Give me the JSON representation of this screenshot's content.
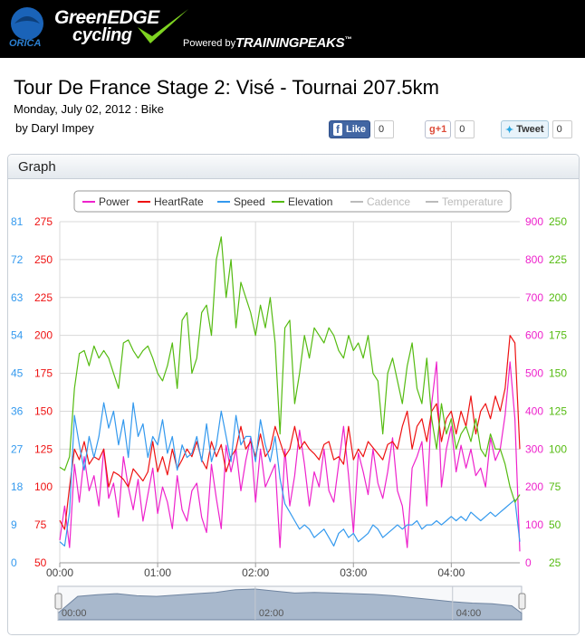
{
  "header": {
    "brand_line1": "GreenEDGE",
    "brand_line2": "cycling",
    "sponsor": "ORICA",
    "powered_by": "Powered by",
    "partner": "TRAININGPEAKS",
    "partner_mark": "™"
  },
  "page": {
    "title": "Tour De France Stage 2: Visé - Tournai 207.5km",
    "date_line": "Monday, July 02, 2012 : Bike",
    "author": "by Daryl Impey"
  },
  "social": {
    "like_label": "Like",
    "like_count": "0",
    "plus_label": "+1",
    "plus_count": "0",
    "tweet_label": "Tweet",
    "tweet_count": "0"
  },
  "panel": {
    "title": "Graph"
  },
  "colors": {
    "power": "#ee22cc",
    "heartrate": "#ee1111",
    "speed": "#3399ee",
    "elevation": "#55bb11",
    "hidden_legend": "#bbbbbb",
    "navigator_fill": "#a8b8cc"
  },
  "chart_data": {
    "type": "line",
    "legend": [
      {
        "name": "Power",
        "visible": true
      },
      {
        "name": "HeartRate",
        "visible": true
      },
      {
        "name": "Speed",
        "visible": true
      },
      {
        "name": "Elevation",
        "visible": true
      },
      {
        "name": "Cadence",
        "visible": false
      },
      {
        "name": "Temperature",
        "visible": false
      }
    ],
    "legend_placement": "top-center",
    "x_ticks": [
      "00:00",
      "01:00",
      "02:00",
      "03:00",
      "04:00"
    ],
    "navigator_ticks": [
      "00:00",
      "02:00",
      "04:00"
    ],
    "xlim_minutes": [
      0,
      282
    ],
    "y_axes": {
      "speed": {
        "ticks": [
          "0",
          "9",
          "18",
          "27",
          "36",
          "45",
          "54",
          "63",
          "72",
          "81"
        ],
        "ylim": [
          0,
          81
        ]
      },
      "heartrate": {
        "ticks": [
          "50",
          "75",
          "100",
          "125",
          "150",
          "175",
          "200",
          "225",
          "250",
          "275"
        ],
        "ylim": [
          50,
          275
        ]
      },
      "power": {
        "ticks": [
          "0",
          "100",
          "200",
          "300",
          "400",
          "500",
          "600",
          "700",
          "800",
          "900"
        ],
        "ylim": [
          0,
          900
        ]
      },
      "elevation": {
        "ticks": [
          "25",
          "50",
          "75",
          "100",
          "125",
          "150",
          "175",
          "200",
          "225",
          "250"
        ],
        "ylim": [
          25,
          250
        ]
      }
    },
    "grid": true,
    "series": [
      {
        "name": "Power",
        "axis": "power",
        "x": [
          0,
          3,
          6,
          9,
          12,
          15,
          18,
          21,
          24,
          27,
          30,
          33,
          36,
          39,
          42,
          45,
          48,
          51,
          54,
          57,
          60,
          63,
          66,
          69,
          72,
          75,
          78,
          81,
          84,
          87,
          90,
          93,
          96,
          99,
          102,
          105,
          108,
          111,
          114,
          117,
          120,
          123,
          126,
          129,
          132,
          135,
          138,
          141,
          144,
          147,
          150,
          153,
          156,
          159,
          162,
          165,
          168,
          171,
          174,
          177,
          180,
          183,
          186,
          189,
          192,
          195,
          198,
          201,
          204,
          207,
          210,
          213,
          216,
          219,
          222,
          225,
          228,
          231,
          234,
          237,
          240,
          243,
          246,
          249,
          252,
          255,
          258,
          261,
          264,
          267,
          270,
          273,
          276,
          279,
          282
        ],
        "y": [
          60,
          150,
          40,
          260,
          160,
          280,
          190,
          230,
          150,
          300,
          170,
          210,
          120,
          280,
          200,
          140,
          220,
          110,
          180,
          250,
          130,
          200,
          160,
          90,
          230,
          140,
          110,
          190,
          210,
          120,
          80,
          260,
          170,
          90,
          310,
          240,
          300,
          190,
          270,
          330,
          160,
          300,
          200,
          230,
          260,
          40,
          300,
          150,
          230,
          350,
          260,
          150,
          240,
          200,
          300,
          190,
          160,
          260,
          360,
          230,
          80,
          290,
          240,
          180,
          300,
          210,
          170,
          240,
          330,
          190,
          150,
          40,
          250,
          280,
          320,
          150,
          420,
          530,
          200,
          300,
          360,
          240,
          310,
          250,
          300,
          230,
          250,
          200,
          330,
          270,
          300,
          390,
          530,
          380,
          30
        ]
      },
      {
        "name": "HeartRate",
        "axis": "heartrate",
        "x": [
          0,
          3,
          6,
          9,
          12,
          15,
          18,
          21,
          24,
          27,
          30,
          33,
          36,
          39,
          42,
          45,
          48,
          51,
          54,
          57,
          60,
          63,
          66,
          69,
          72,
          75,
          78,
          81,
          84,
          87,
          90,
          93,
          96,
          99,
          102,
          105,
          108,
          111,
          114,
          117,
          120,
          123,
          126,
          129,
          132,
          135,
          138,
          141,
          144,
          147,
          150,
          153,
          156,
          159,
          162,
          165,
          168,
          171,
          174,
          177,
          180,
          183,
          186,
          189,
          192,
          195,
          198,
          201,
          204,
          207,
          210,
          213,
          216,
          219,
          222,
          225,
          228,
          231,
          234,
          237,
          240,
          243,
          246,
          249,
          252,
          255,
          258,
          261,
          264,
          267,
          270,
          273,
          276,
          279,
          282
        ],
        "y": [
          78,
          72,
          100,
          125,
          118,
          130,
          115,
          120,
          118,
          125,
          100,
          110,
          108,
          105,
          100,
          112,
          108,
          104,
          110,
          130,
          110,
          120,
          108,
          125,
          112,
          118,
          125,
          120,
          130,
          118,
          112,
          130,
          120,
          128,
          110,
          120,
          125,
          140,
          125,
          130,
          120,
          135,
          120,
          125,
          140,
          130,
          120,
          125,
          140,
          125,
          130,
          125,
          122,
          118,
          128,
          130,
          118,
          120,
          115,
          140,
          118,
          125,
          120,
          130,
          126,
          122,
          118,
          128,
          130,
          125,
          140,
          150,
          125,
          140,
          145,
          130,
          150,
          155,
          130,
          145,
          150,
          135,
          150,
          140,
          160,
          135,
          150,
          155,
          145,
          160,
          150,
          165,
          200,
          195,
          125
        ]
      },
      {
        "name": "Speed",
        "axis": "speed",
        "x": [
          0,
          3,
          6,
          9,
          12,
          15,
          18,
          21,
          24,
          27,
          30,
          33,
          36,
          39,
          42,
          45,
          48,
          51,
          54,
          57,
          60,
          63,
          66,
          69,
          72,
          75,
          78,
          81,
          84,
          87,
          90,
          93,
          96,
          99,
          102,
          105,
          108,
          111,
          114,
          117,
          120,
          123,
          126,
          129,
          132,
          135,
          138,
          141,
          144,
          147,
          150,
          153,
          156,
          159,
          162,
          165,
          168,
          171,
          174,
          177,
          180,
          183,
          186,
          189,
          192,
          195,
          198,
          201,
          204,
          207,
          210,
          213,
          216,
          219,
          222,
          225,
          228,
          231,
          234,
          237,
          240,
          243,
          246,
          249,
          252,
          255,
          258,
          261,
          264,
          267,
          270,
          273,
          276,
          279,
          282
        ],
        "y": [
          5,
          4,
          12,
          35,
          28,
          22,
          30,
          25,
          30,
          38,
          32,
          36,
          28,
          34,
          25,
          38,
          30,
          33,
          25,
          30,
          28,
          34,
          26,
          30,
          22,
          28,
          25,
          26,
          30,
          24,
          33,
          24,
          28,
          36,
          30,
          24,
          35,
          28,
          30,
          30,
          24,
          34,
          28,
          24,
          30,
          20,
          14,
          12,
          10,
          8,
          9,
          8,
          6,
          7,
          8,
          6,
          4,
          7,
          8,
          6,
          7,
          5,
          6,
          7,
          9,
          8,
          6,
          7,
          8,
          9,
          8,
          9,
          9,
          10,
          8,
          9,
          9,
          10,
          9,
          10,
          11,
          10,
          11,
          10,
          12,
          11,
          10,
          11,
          12,
          11,
          12,
          13,
          14,
          15,
          5
        ]
      },
      {
        "name": "Elevation",
        "axis": "elevation",
        "x": [
          0,
          3,
          6,
          9,
          12,
          15,
          18,
          21,
          24,
          27,
          30,
          33,
          36,
          39,
          42,
          45,
          48,
          51,
          54,
          57,
          60,
          63,
          66,
          69,
          72,
          75,
          78,
          81,
          84,
          87,
          90,
          93,
          96,
          99,
          102,
          105,
          108,
          111,
          114,
          117,
          120,
          123,
          126,
          129,
          132,
          135,
          138,
          141,
          144,
          147,
          150,
          153,
          156,
          159,
          162,
          165,
          168,
          171,
          174,
          177,
          180,
          183,
          186,
          189,
          192,
          195,
          198,
          201,
          204,
          207,
          210,
          213,
          216,
          219,
          222,
          225,
          228,
          231,
          234,
          237,
          240,
          243,
          246,
          249,
          252,
          255,
          258,
          261,
          264,
          267,
          270,
          273,
          276,
          279,
          282
        ],
        "y": [
          88,
          86,
          95,
          140,
          163,
          165,
          155,
          168,
          160,
          165,
          160,
          150,
          140,
          170,
          172,
          165,
          160,
          165,
          168,
          160,
          150,
          145,
          155,
          170,
          140,
          185,
          190,
          150,
          160,
          190,
          195,
          175,
          225,
          240,
          200,
          225,
          180,
          210,
          200,
          190,
          175,
          195,
          180,
          200,
          170,
          110,
          180,
          185,
          130,
          150,
          175,
          160,
          180,
          175,
          170,
          180,
          175,
          165,
          160,
          175,
          165,
          170,
          160,
          175,
          150,
          145,
          110,
          150,
          160,
          145,
          130,
          155,
          170,
          140,
          130,
          160,
          120,
          100,
          130,
          110,
          120,
          100,
          110,
          115,
          105,
          120,
          100,
          95,
          110,
          100,
          100,
          90,
          75,
          65,
          70
        ]
      }
    ],
    "navigator": {
      "x": [
        0,
        12,
        24,
        36,
        48,
        60,
        72,
        84,
        96,
        108,
        120,
        132,
        144,
        156,
        168,
        180,
        192,
        204,
        216,
        228,
        240,
        252,
        264,
        276,
        282
      ],
      "y": [
        20,
        70,
        75,
        78,
        72,
        70,
        74,
        78,
        82,
        90,
        92,
        86,
        80,
        82,
        80,
        78,
        76,
        72,
        66,
        60,
        54,
        50,
        48,
        42,
        20
      ]
    }
  }
}
